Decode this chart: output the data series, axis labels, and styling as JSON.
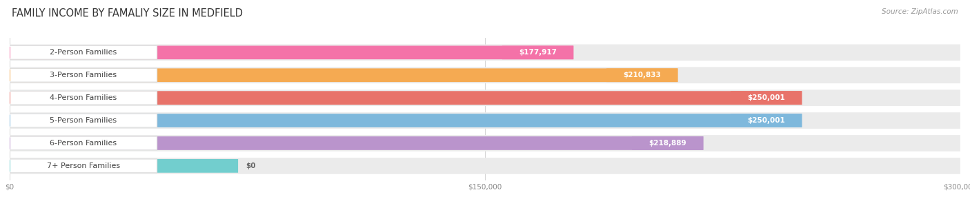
{
  "title": "FAMILY INCOME BY FAMALIY SIZE IN MEDFIELD",
  "source": "Source: ZipAtlas.com",
  "categories": [
    "2-Person Families",
    "3-Person Families",
    "4-Person Families",
    "5-Person Families",
    "6-Person Families",
    "7+ Person Families"
  ],
  "values": [
    177917,
    210833,
    250001,
    250001,
    218889,
    0
  ],
  "value_labels": [
    "$177,917",
    "$210,833",
    "$250,001",
    "$250,001",
    "$218,889",
    "$0"
  ],
  "bar_colors": [
    "#F472A8",
    "#F5AA52",
    "#E8736A",
    "#7EB8DC",
    "#BA94CC",
    "#72CECE"
  ],
  "track_color": "#EBEBEB",
  "label_bg_color": "#FFFFFF",
  "xmax": 300000,
  "xtick_labels": [
    "$0",
    "$150,000",
    "$300,000"
  ],
  "background_color": "#FFFFFF",
  "title_fontsize": 10.5,
  "label_fontsize": 8.0,
  "value_fontsize": 7.5,
  "source_fontsize": 7.5
}
